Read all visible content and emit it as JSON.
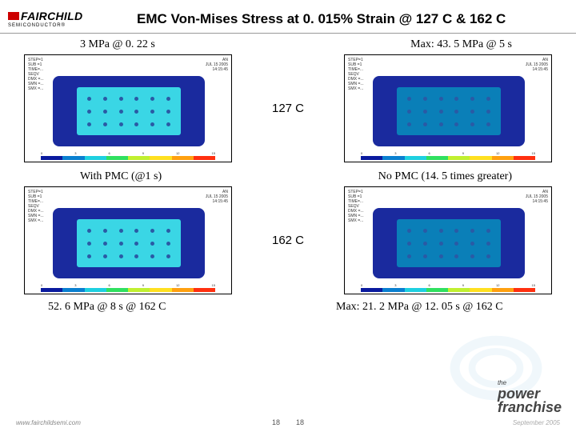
{
  "logo": {
    "brand": "FAIRCHILD",
    "sub": "SEMICONDUCTOR®",
    "bar_color": "#cc0000"
  },
  "title": "EMC Von-Mises Stress at 0. 015% Strain @ 127 C & 162 C",
  "rows": {
    "top": {
      "left_label": "3 MPa @ 0. 22 s",
      "right_label": "Max: 43. 5 MPa @ 5 s",
      "center": "127 C"
    },
    "mid": {
      "left_label": "With PMC (@1 s)",
      "right_label": "No PMC (14. 5 times greater)",
      "center": "162 C"
    },
    "bottom": {
      "left_label": "52. 6 MPa @ 8 s @ 162 C",
      "right_label": "Max: 21. 2 MPa @ 12. 05 s @ 162 C"
    }
  },
  "plots": {
    "outer_color": "#1a2a9e",
    "inner_color": "#3ad6e5",
    "inner_alt_color": "#0a7fb8",
    "dot_color": "#2a5aa5",
    "colorbar": [
      "#0a1a9e",
      "#0a7fd0",
      "#1ed0e0",
      "#30e060",
      "#c0f030",
      "#ffe020",
      "#ffa010",
      "#ff3010"
    ],
    "tick_labels": [
      "0",
      "3",
      "6",
      "9",
      "12",
      "15"
    ],
    "meta_lines": [
      "STEP=1",
      "SUB =1",
      "TIME=...",
      "SEQV",
      "DMX =...",
      "SMN =...",
      "SMX =..."
    ],
    "meta_right": [
      "AN",
      "JUL 15 2005",
      "14:15:45"
    ]
  },
  "footer": {
    "url": "www.fairchildsemi.com",
    "page_a": "18",
    "page_b": "18",
    "date": "September 2005",
    "franchise_the": "the",
    "franchise_1": "power",
    "franchise_2": "franchise"
  }
}
